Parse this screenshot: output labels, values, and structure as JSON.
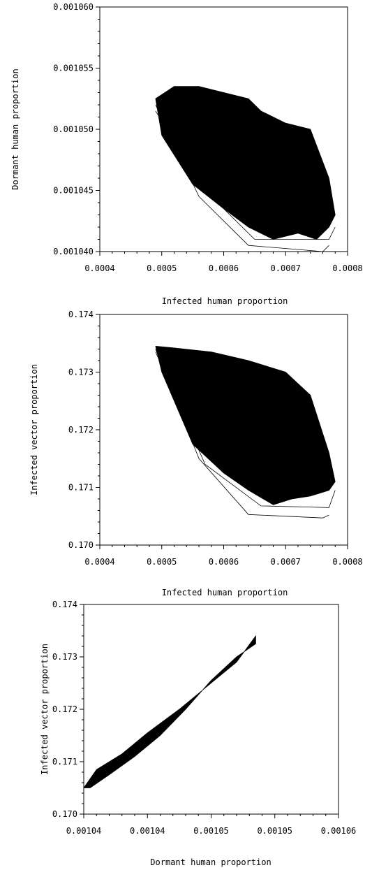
{
  "chart_data": [
    {
      "type": "line",
      "title": "",
      "xlabel": "Infected human proportion",
      "ylabel": "Dormant human proportion",
      "xlim": [
        0.0004,
        0.0008
      ],
      "ylim": [
        0.00104,
        0.00106
      ],
      "x_ticks": [
        "0.0004",
        "0.0005",
        "0.0006",
        "0.0007",
        "0.0008"
      ],
      "y_ticks": [
        "0.001040",
        "0.001045",
        "0.001050",
        "0.001055",
        "0.001060"
      ],
      "x_ticks_values": [
        0.0004,
        0.0005,
        0.0006,
        0.0007,
        0.0008
      ],
      "y_ticks_values": [
        0.00104,
        0.001045,
        0.00105,
        0.001055,
        0.00106
      ],
      "series": [
        {
          "x": [
            0.00049,
            0.00052,
            0.00056,
            0.00064,
            0.00066,
            0.0007,
            0.00074,
            0.00077,
            0.00078,
            0.00077,
            0.00075,
            0.00072,
            0.00068,
            0.00064,
            0.0006,
            0.00055,
            0.0005,
            0.00049
          ],
          "y": [
            0.0010525,
            0.0010535,
            0.0010535,
            0.0010525,
            0.0010515,
            0.0010505,
            0.00105,
            0.001046,
            0.001043,
            0.001042,
            0.001041,
            0.0010415,
            0.001041,
            0.001042,
            0.0010435,
            0.0010455,
            0.0010495,
            0.0010525
          ]
        },
        {
          "x": [
            0.00049,
            0.00056,
            0.00064,
            0.00076,
            0.00077
          ],
          "y": [
            0.001052,
            0.0010445,
            0.0010405,
            0.00104,
            0.0010405
          ]
        },
        {
          "x": [
            0.00049,
            0.00057,
            0.00065,
            0.00077,
            0.00078
          ],
          "y": [
            0.0010515,
            0.001045,
            0.001041,
            0.001041,
            0.001042
          ]
        }
      ]
    },
    {
      "type": "line",
      "title": "",
      "xlabel": "Infected human proportion",
      "ylabel": "Infected vector proportion",
      "xlim": [
        0.0004,
        0.0008
      ],
      "ylim": [
        0.17,
        0.174
      ],
      "x_ticks": [
        "0.0004",
        "0.0005",
        "0.0006",
        "0.0007",
        "0.0008"
      ],
      "y_ticks": [
        "0.170",
        "0.171",
        "0.172",
        "0.173",
        "0.174"
      ],
      "x_ticks_values": [
        0.0004,
        0.0005,
        0.0006,
        0.0007,
        0.0008
      ],
      "y_ticks_values": [
        0.17,
        0.171,
        0.172,
        0.173,
        0.174
      ],
      "series": [
        {
          "x": [
            0.00049,
            0.00052,
            0.00058,
            0.00064,
            0.00067,
            0.0007,
            0.00074,
            0.00077,
            0.00078,
            0.00077,
            0.00074,
            0.00071,
            0.00068,
            0.00064,
            0.0006,
            0.00055,
            0.0005,
            0.00049
          ],
          "y": [
            0.17345,
            0.17342,
            0.17335,
            0.1732,
            0.1731,
            0.173,
            0.1726,
            0.1716,
            0.1711,
            0.17095,
            0.17085,
            0.1708,
            0.1707,
            0.17095,
            0.17125,
            0.17175,
            0.173,
            0.17345
          ]
        },
        {
          "x": [
            0.00049,
            0.00056,
            0.00064,
            0.00076,
            0.00077
          ],
          "y": [
            0.1734,
            0.1715,
            0.17053,
            0.17047,
            0.17052
          ]
        },
        {
          "x": [
            0.00049,
            0.00057,
            0.00066,
            0.00077,
            0.00078
          ],
          "y": [
            0.17335,
            0.1714,
            0.17068,
            0.17065,
            0.17095
          ]
        }
      ]
    },
    {
      "type": "line",
      "title": "",
      "xlabel": "Dormant human proportion",
      "ylabel": "Infected vector proportion",
      "xlim": [
        0.00104,
        0.00106
      ],
      "ylim": [
        0.17,
        0.174
      ],
      "x_ticks": [
        "0.00104",
        "0.00104",
        "0.00105",
        "0.00105",
        "0.00106"
      ],
      "y_ticks": [
        "0.170",
        "0.171",
        "0.172",
        "0.173",
        "0.174"
      ],
      "x_ticks_values": [
        0.00104,
        0.001045,
        0.00105,
        0.001055,
        0.00106
      ],
      "y_ticks_values": [
        0.17,
        0.171,
        0.172,
        0.173,
        0.174
      ],
      "series": [
        {
          "x": [
            0.00104,
            0.001041,
            0.001043,
            0.001045,
            0.0010475,
            0.00105,
            0.001052,
            0.0010535,
            0.0010535,
            0.001052,
            0.00105,
            0.001048,
            0.001046,
            0.001044,
            0.001042,
            0.0010405,
            0.00104
          ],
          "y": [
            0.1705,
            0.17085,
            0.17115,
            0.17155,
            0.172,
            0.1725,
            0.1729,
            0.1734,
            0.17325,
            0.173,
            0.17255,
            0.172,
            0.1715,
            0.1711,
            0.17075,
            0.1705,
            0.1705
          ]
        }
      ]
    }
  ]
}
